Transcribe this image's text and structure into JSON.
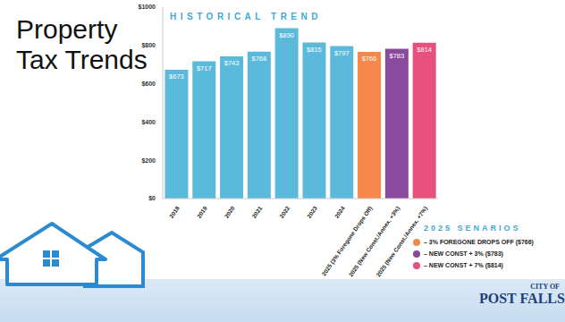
{
  "slide_title": "Property Tax Trends",
  "logo": {
    "line1": "CITY OF",
    "line2": "POST FALLS"
  },
  "chart_data": {
    "type": "bar",
    "title": "HISTORICAL TREND",
    "categories": [
      "2018",
      "2019",
      "2020",
      "2021",
      "2022",
      "2023",
      "2024",
      "2025 (3% Foregone Drops Off)",
      "2025 (New Const./Annex. +3%)",
      "2025 (New Const./Annex. +7%)"
    ],
    "values": [
      673,
      717,
      743,
      768,
      890,
      815,
      797,
      766,
      783,
      814
    ],
    "value_labels": [
      "$673",
      "$717",
      "$743",
      "$768",
      "$890",
      "$815",
      "$797",
      "$766",
      "$783",
      "$814"
    ],
    "data_labels": true,
    "colors": [
      "#5bbadb",
      "#5bbadb",
      "#5bbadb",
      "#5bbadb",
      "#5bbadb",
      "#5bbadb",
      "#5bbadb",
      "#f5884a",
      "#8a4a9e",
      "#e8507d"
    ],
    "ylim": [
      0,
      1000
    ],
    "yticks": [
      {
        "value": 0,
        "label": "$0"
      },
      {
        "value": 200,
        "label": "$200"
      },
      {
        "value": 400,
        "label": "$400"
      },
      {
        "value": 600,
        "label": "$600"
      },
      {
        "value": 800,
        "label": "$800"
      },
      {
        "value": 1000,
        "label": "$1000"
      }
    ],
    "grid": false,
    "annotations": {
      "title": "2025 SENARIOS",
      "items": [
        {
          "text": "– 3% FOREGONE DROPS OFF ($766)",
          "color": "#f5884a"
        },
        {
          "text": "– NEW CONST + 3% ($783)",
          "color": "#8a4a9e"
        },
        {
          "text": "– NEW CONST + 7% ($814)",
          "color": "#e8507d"
        }
      ]
    }
  }
}
